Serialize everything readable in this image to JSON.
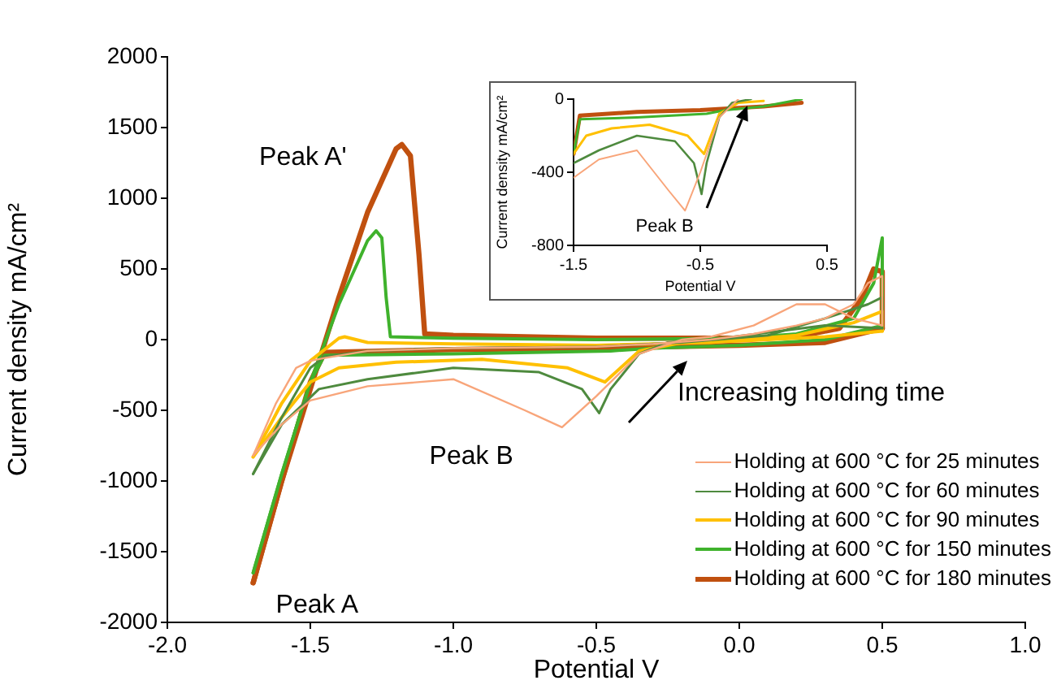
{
  "chart_data": [
    {
      "type": "line",
      "xlabel": "Potential V",
      "ylabel": "Current density mA/cm²",
      "xlim": [
        -2.0,
        1.0
      ],
      "xticks": [
        {
          "value": -2,
          "label": "-2.0"
        },
        -1.5,
        {
          "value": -1,
          "label": "-1.0"
        },
        -0.5,
        {
          "value": 0,
          "label": "0.0"
        },
        0.5,
        {
          "value": 1,
          "label": "1.0"
        }
      ],
      "ylim": [
        -2000,
        2000
      ],
      "yticks": [
        -2000,
        -1500,
        -1000,
        -500,
        0,
        500,
        1000,
        1500,
        2000
      ],
      "grid": false,
      "marker": "none",
      "line_style": "solid",
      "legend": "bottom right",
      "annotations": [
        {
          "text": "Peak A'",
          "x": -1.18,
          "y": 1380
        },
        {
          "text": "Peak A",
          "x": -1.7,
          "y": -1720
        },
        {
          "text": "Peak B",
          "x": -0.62,
          "y": -620
        },
        "Increasing holding time"
      ],
      "series": [
        {
          "name": "Holding at 600 °C for 25 minutes",
          "color": "#f8a57a",
          "x": [
            -1.7,
            -1.62,
            -1.55,
            -1.5,
            -1.45,
            -1.3,
            -1.0,
            -0.5,
            -0.3,
            -0.1,
            0.05,
            0.2,
            0.3,
            0.4,
            0.45,
            0.5,
            0.5
          ],
          "values": [
            -820,
            -450,
            -200,
            -150,
            -130,
            -80,
            -60,
            -50,
            -30,
            0,
            40,
            100,
            150,
            250,
            400,
            450,
            100
          ]
        },
        {
          "color": "#f8a57a",
          "x": [
            -1.7,
            -1.6,
            -1.5,
            -1.3,
            -1.0,
            -0.75,
            -0.62,
            -0.5,
            -0.35,
            -0.2,
            -0.1,
            0.05,
            0.2,
            0.3,
            0.4,
            0.5
          ],
          "values": [
            -820,
            -600,
            -430,
            -330,
            -280,
            -500,
            -620,
            -400,
            -100,
            0,
            20,
            100,
            250,
            250,
            150,
            100
          ]
        },
        {
          "name": "Holding at 600 °C for 60 minutes",
          "color": "#4e8a3e",
          "x": [
            -1.7,
            -1.6,
            -1.5,
            -1.45,
            -1.3,
            -1.0,
            -0.5,
            -0.2,
            0.1,
            0.3,
            0.45,
            0.5,
            0.5
          ],
          "values": [
            -950,
            -550,
            -200,
            -120,
            -80,
            -60,
            -50,
            -20,
            30,
            150,
            250,
            300,
            80
          ]
        },
        {
          "color": "#4e8a3e",
          "x": [
            -1.7,
            -1.6,
            -1.47,
            -1.3,
            -1.0,
            -0.7,
            -0.55,
            -0.49,
            -0.45,
            -0.35,
            -0.25,
            -0.1,
            0.1,
            0.3,
            0.5
          ],
          "values": [
            -950,
            -600,
            -350,
            -280,
            -200,
            -230,
            -350,
            -520,
            -350,
            -100,
            -20,
            0,
            50,
            100,
            80
          ]
        },
        {
          "name": "Holding at 600 °C for 90 minutes",
          "color": "#ffc000",
          "x": [
            -1.7,
            -1.6,
            -1.5,
            -1.4,
            -1.38,
            -1.3,
            -1.0,
            -0.5,
            -0.1,
            0.2,
            0.4,
            0.5,
            0.5
          ],
          "values": [
            -830,
            -450,
            -150,
            10,
            20,
            -20,
            -30,
            -40,
            -20,
            30,
            120,
            200,
            60
          ]
        },
        {
          "color": "#ffc000",
          "x": [
            -1.7,
            -1.6,
            -1.5,
            -1.4,
            -1.2,
            -0.9,
            -0.6,
            -0.47,
            -0.35,
            -0.2,
            0.0,
            0.3,
            0.5
          ],
          "values": [
            -830,
            -550,
            -300,
            -200,
            -160,
            -140,
            -200,
            -300,
            -80,
            -20,
            -10,
            20,
            60
          ]
        },
        {
          "name": "Holding at 600 °C for 150 minutes",
          "color": "#3fb22c",
          "x": [
            -1.7,
            -1.6,
            -1.5,
            -1.4,
            -1.3,
            -1.27,
            -1.25,
            -1.235,
            -1.22,
            -1.0,
            -0.5,
            0,
            0.2,
            0.4,
            0.47,
            0.5,
            0.5
          ],
          "values": [
            -1650,
            -950,
            -300,
            250,
            700,
            770,
            720,
            300,
            20,
            10,
            0,
            10,
            40,
            150,
            400,
            720,
            100
          ]
        },
        {
          "color": "#3fb22c",
          "x": [
            -1.7,
            -1.6,
            -1.5,
            -1.45,
            -1.0,
            -0.45,
            -0.3,
            0,
            0.3,
            0.5
          ],
          "values": [
            -1650,
            -950,
            -300,
            -110,
            -100,
            -80,
            -60,
            -40,
            0,
            100
          ]
        },
        {
          "name": "Holding at 600 °C for 180 minutes",
          "color": "#c0500f",
          "x": [
            -1.7,
            -1.6,
            -1.5,
            -1.4,
            -1.3,
            -1.2,
            -1.18,
            -1.15,
            -1.12,
            -1.1,
            -1.0,
            -0.5,
            0,
            0.2,
            0.35,
            0.43,
            0.47,
            0.5,
            0.5
          ],
          "values": [
            -1720,
            -1000,
            -350,
            300,
            900,
            1350,
            1380,
            1300,
            600,
            40,
            30,
            10,
            10,
            20,
            80,
            300,
            500,
            480,
            80
          ]
        },
        {
          "color": "#c0500f",
          "x": [
            -1.7,
            -1.6,
            -1.5,
            -1.45,
            -1.0,
            -0.5,
            0,
            0.3,
            0.5
          ],
          "values": [
            -1720,
            -1000,
            -300,
            -90,
            -70,
            -60,
            -40,
            -20,
            80
          ]
        }
      ]
    },
    {
      "type": "line",
      "xlabel": "Potential V",
      "ylabel": "Current density mA/cm²",
      "xlim": [
        -1.5,
        0.5
      ],
      "xticks": [
        -1.5,
        -0.5,
        0.5
      ],
      "ylim": [
        -800,
        0
      ],
      "yticks": [
        -800,
        -400,
        0
      ],
      "grid": false,
      "marker": "none",
      "line_style": "solid",
      "annotations": [
        {
          "text": "Peak B",
          "x": -0.49,
          "y": -520
        }
      ],
      "series": [
        {
          "color": "#f8a57a",
          "x": [
            -1.5,
            -1.3,
            -1.0,
            -0.75,
            -0.62,
            -0.5,
            -0.35,
            -0.2
          ],
          "values": [
            -430,
            -330,
            -280,
            -500,
            -610,
            -400,
            -100,
            0
          ]
        },
        {
          "color": "#4e8a3e",
          "x": [
            -1.5,
            -1.3,
            -1.0,
            -0.7,
            -0.55,
            -0.49,
            -0.45,
            -0.35,
            -0.25,
            -0.1
          ],
          "values": [
            -350,
            -280,
            -200,
            -230,
            -350,
            -520,
            -350,
            -100,
            -20,
            0
          ]
        },
        {
          "color": "#ffc000",
          "x": [
            -1.5,
            -1.4,
            -1.2,
            -0.9,
            -0.6,
            -0.47,
            -0.35,
            -0.2,
            0.0
          ],
          "values": [
            -300,
            -200,
            -160,
            -140,
            -200,
            -300,
            -80,
            -20,
            -10
          ]
        },
        {
          "color": "#3fb22c",
          "x": [
            -1.5,
            -1.45,
            -1.0,
            -0.45,
            -0.3,
            0,
            0.3
          ],
          "values": [
            -300,
            -110,
            -100,
            -80,
            -60,
            -40,
            0
          ]
        },
        {
          "color": "#c0500f",
          "x": [
            -1.5,
            -1.45,
            -1.0,
            -0.5,
            0,
            0.3
          ],
          "values": [
            -300,
            -90,
            -70,
            -60,
            -40,
            -20
          ]
        }
      ]
    }
  ]
}
